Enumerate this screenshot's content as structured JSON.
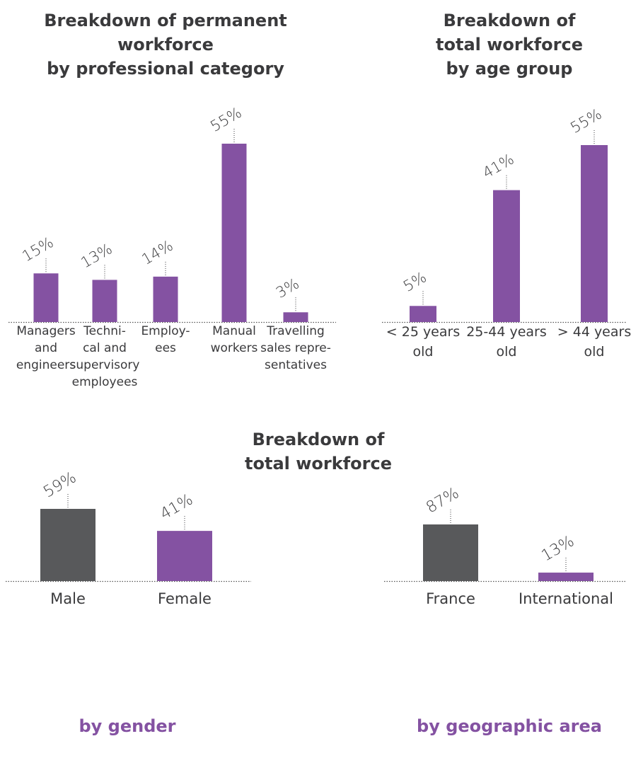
{
  "colors": {
    "purple": "#8452a2",
    "gray": "#58595b",
    "text": "#3a3a3c",
    "baseline": "#555555"
  },
  "titles": {
    "professional": "Breakdown of permanent\nworkforce\nby professional category",
    "age": "Breakdown of\ntotal workforce\nby age group",
    "total": "Breakdown of\ntotal workforce",
    "gender": "by gender",
    "geo": "by geographic area"
  },
  "chart_data": [
    {
      "type": "bar",
      "title": "Breakdown of permanent workforce by professional category",
      "categories": [
        [
          "Managers",
          "and",
          "engineers"
        ],
        [
          "Techni-",
          "cal and",
          "supervisory",
          "employees"
        ],
        [
          "Employ-",
          "ees"
        ],
        [
          "Manual",
          "workers"
        ],
        [
          "Travelling",
          "sales repre-",
          "sentatives"
        ]
      ],
      "values": [
        15,
        13,
        14,
        55,
        3
      ],
      "value_labels": [
        "15%",
        "13%",
        "14%",
        "55%",
        "3%"
      ],
      "colors": [
        "#8452a2",
        "#8452a2",
        "#8452a2",
        "#8452a2",
        "#8452a2"
      ],
      "ylim": [
        0,
        55
      ]
    },
    {
      "type": "bar",
      "title": "Breakdown of total workforce by age group",
      "categories": [
        [
          "< 25 years",
          "old"
        ],
        [
          "25-44 years",
          "old"
        ],
        [
          "> 44 years",
          "old"
        ]
      ],
      "values": [
        5,
        41,
        55
      ],
      "value_labels": [
        "5%",
        "41%",
        "55%"
      ],
      "colors": [
        "#8452a2",
        "#8452a2",
        "#8452a2"
      ],
      "ylim": [
        0,
        55
      ]
    },
    {
      "type": "bar",
      "title": "Breakdown of total workforce by gender",
      "categories": [
        [
          "Male"
        ],
        [
          "Female"
        ]
      ],
      "values": [
        59,
        41
      ],
      "value_labels": [
        "59%",
        "41%"
      ],
      "colors": [
        "#58595b",
        "#8452a2"
      ],
      "ylim": [
        0,
        59
      ]
    },
    {
      "type": "bar",
      "title": "Breakdown of total workforce by geographic area",
      "categories": [
        [
          "France"
        ],
        [
          "International"
        ]
      ],
      "values": [
        87,
        13
      ],
      "value_labels": [
        "87%",
        "13%"
      ],
      "colors": [
        "#58595b",
        "#8452a2"
      ],
      "ylim": [
        0,
        87
      ]
    }
  ]
}
